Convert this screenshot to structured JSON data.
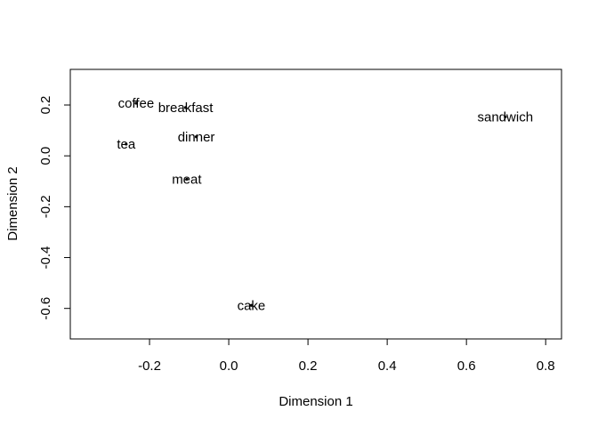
{
  "chart_data": {
    "type": "scatter",
    "title": "",
    "xlabel": "Dimension 1",
    "ylabel": "Dimension 2",
    "xlim": [
      -0.4,
      0.84
    ],
    "ylim": [
      -0.72,
      0.34
    ],
    "xticks": [
      -0.2,
      0.0,
      0.2,
      0.4,
      0.6,
      0.8
    ],
    "xtick_labels": [
      "-0.2",
      "0.0",
      "0.2",
      "0.4",
      "0.6",
      "0.8"
    ],
    "yticks": [
      -0.6,
      -0.4,
      -0.2,
      0.0,
      0.2
    ],
    "ytick_labels": [
      "-0.6",
      "-0.4",
      "-0.2",
      "0.0",
      "0.2"
    ],
    "grid": false,
    "legend": "none",
    "points": [
      {
        "label": "coffee",
        "x": -0.234,
        "y": 0.207
      },
      {
        "label": "breakfast",
        "x": -0.109,
        "y": 0.19
      },
      {
        "label": "tea",
        "x": -0.259,
        "y": 0.046
      },
      {
        "label": "dinner",
        "x": -0.082,
        "y": 0.075
      },
      {
        "label": "meat",
        "x": -0.106,
        "y": -0.092
      },
      {
        "label": "cake",
        "x": 0.057,
        "y": -0.588
      },
      {
        "label": "sandwich",
        "x": 0.698,
        "y": 0.153
      }
    ]
  }
}
